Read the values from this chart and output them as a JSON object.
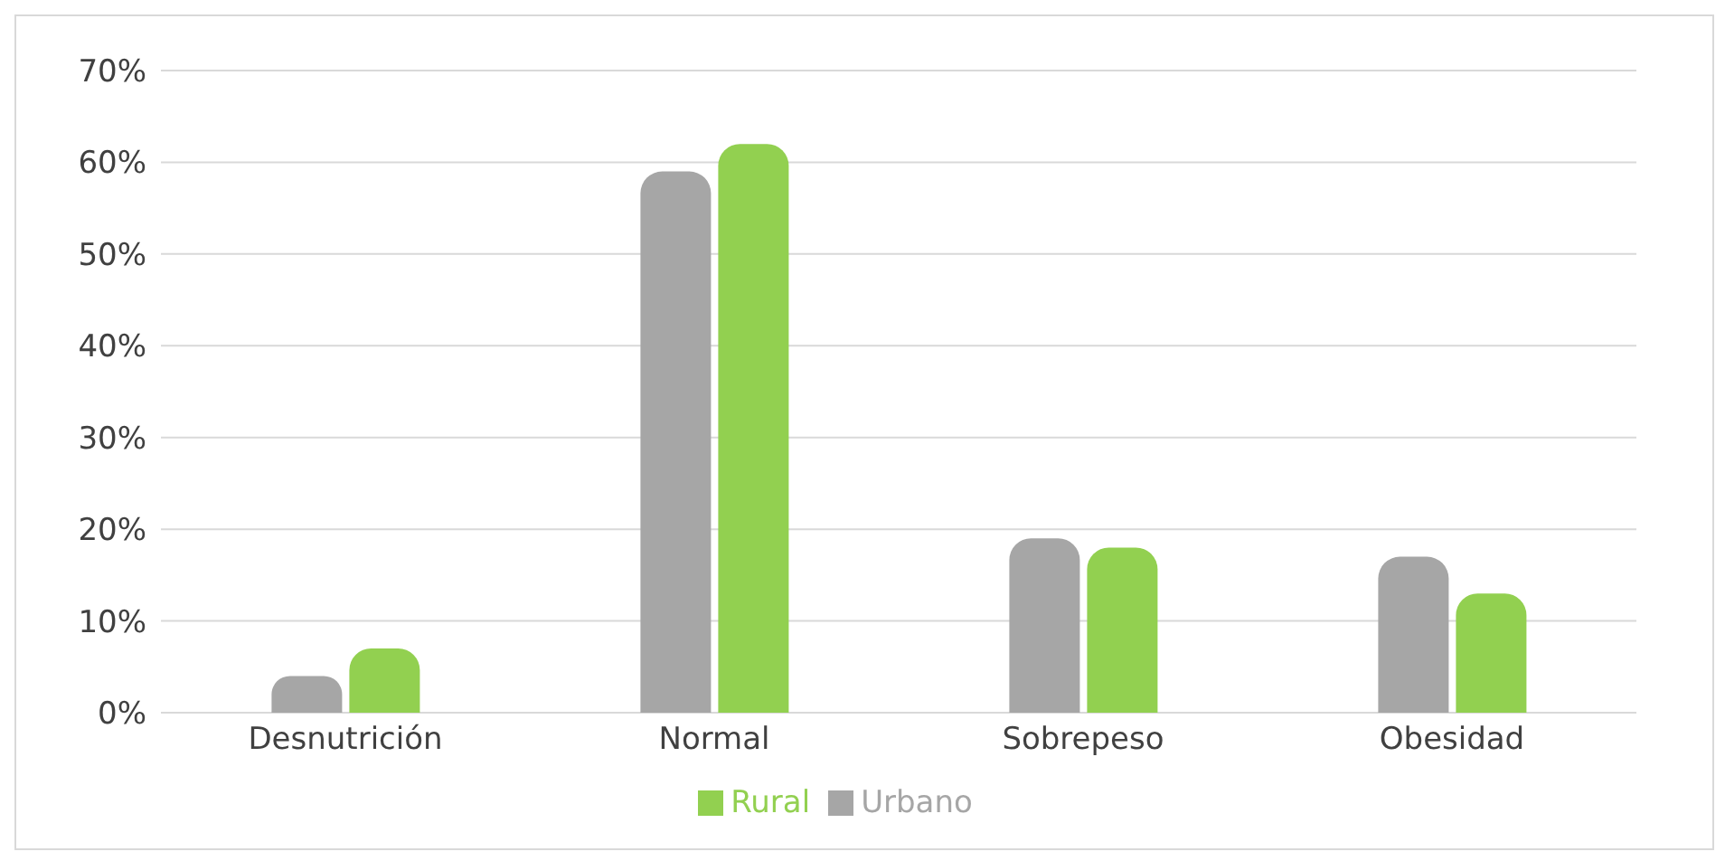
{
  "chart_data": {
    "type": "bar",
    "categories": [
      "Desnutrición",
      "Normal",
      "Sobrepeso",
      "Obesidad"
    ],
    "series": [
      {
        "name": "Urbano",
        "color": "#a6a6a6",
        "values": [
          4,
          59,
          19,
          17
        ]
      },
      {
        "name": "Rural",
        "color": "#92d050",
        "values": [
          7,
          62,
          18,
          13
        ]
      }
    ],
    "ylim": [
      0,
      70
    ],
    "yticks": [
      {
        "value": 0,
        "label": "0%"
      },
      {
        "value": 10,
        "label": "10%"
      },
      {
        "value": 20,
        "label": "20%"
      },
      {
        "value": 30,
        "label": "30%"
      },
      {
        "value": 40,
        "label": "40%"
      },
      {
        "value": 50,
        "label": "50%"
      },
      {
        "value": 60,
        "label": "60%"
      },
      {
        "value": 70,
        "label": "70%"
      }
    ],
    "grid": "y",
    "legend": "bottom"
  }
}
